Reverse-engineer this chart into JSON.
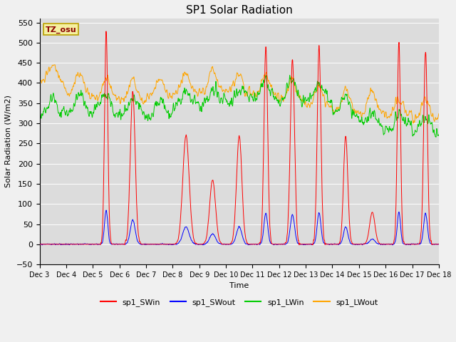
{
  "title": "SP1 Solar Radiation",
  "xlabel": "Time",
  "ylabel": "Solar Radiation (W/m2)",
  "ylim": [
    -50,
    560
  ],
  "colors": {
    "sp1_SWin": "#ff0000",
    "sp1_SWout": "#0000ff",
    "sp1_LWin": "#00cc00",
    "sp1_LWout": "#ffa500"
  },
  "tz_label": "TZ_osu",
  "background_color": "#dcdcdc",
  "grid_color": "#ffffff",
  "days": 15,
  "n_points": 3600
}
